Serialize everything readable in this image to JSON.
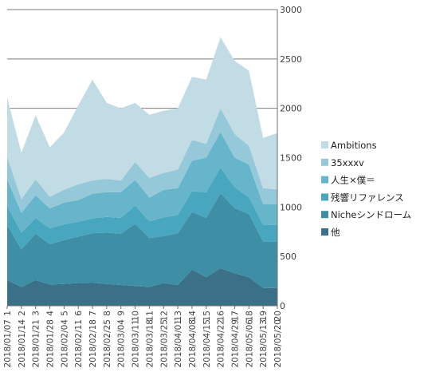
{
  "chart_data": {
    "type": "area",
    "stacked": true,
    "ylim": [
      0,
      3000
    ],
    "y_ticks": [
      0,
      500,
      1000,
      1500,
      2000,
      2500,
      3000
    ],
    "y_axis_side": "right",
    "grid": true,
    "legend_position": "right",
    "x": [
      1,
      2,
      3,
      4,
      5,
      6,
      7,
      8,
      9,
      10,
      11,
      12,
      13,
      14,
      15,
      16,
      17,
      18,
      19,
      20
    ],
    "date_labels": [
      "2018/01/07",
      "2018/01/14",
      "2018/01/21",
      "2018/01/28",
      "2018/02/04",
      "2018/02/11",
      "2018/02/18",
      "2018/02/25",
      "2018/03/04",
      "2018/03/11",
      "2018/03/18",
      "2018/03/25",
      "2018/04/01",
      "2018/04/08",
      "2018/04/15",
      "2018/04/22",
      "2018/04/29",
      "2018/05/06",
      "2018/05/13",
      "2018/05/20"
    ],
    "series": [
      {
        "name": "他",
        "color": "#3a7088",
        "values": [
          260,
          190,
          260,
          215,
          220,
          230,
          235,
          220,
          210,
          200,
          190,
          230,
          210,
          365,
          290,
          380,
          330,
          290,
          180,
          180
        ]
      },
      {
        "name": "Nicheシンドローム",
        "color": "#3e8fa6",
        "values": [
          560,
          380,
          470,
          410,
          445,
          470,
          500,
          520,
          520,
          630,
          495,
          475,
          525,
          585,
          600,
          760,
          660,
          640,
          470,
          470
        ]
      },
      {
        "name": "残響リファレンス",
        "color": "#48a6be",
        "values": [
          190,
          170,
          160,
          160,
          160,
          150,
          150,
          160,
          160,
          185,
          170,
          190,
          185,
          210,
          260,
          260,
          210,
          170,
          170,
          170
        ]
      },
      {
        "name": "人生×僕＝",
        "color": "#66b5cb",
        "values": [
          270,
          200,
          230,
          200,
          220,
          220,
          250,
          250,
          260,
          260,
          240,
          280,
          270,
          310,
          350,
          360,
          300,
          330,
          210,
          210
        ]
      },
      {
        "name": "35xxxv",
        "color": "#95c9d9",
        "values": [
          230,
          140,
          160,
          120,
          130,
          160,
          135,
          135,
          120,
          180,
          200,
          170,
          190,
          210,
          140,
          240,
          240,
          190,
          160,
          150
        ]
      },
      {
        "name": "Ambitions",
        "color": "#c2dce5",
        "values": [
          600,
          470,
          650,
          500,
          580,
          800,
          1020,
          770,
          730,
          600,
          640,
          630,
          620,
          640,
          650,
          720,
          740,
          760,
          510,
          570
        ]
      }
    ]
  }
}
